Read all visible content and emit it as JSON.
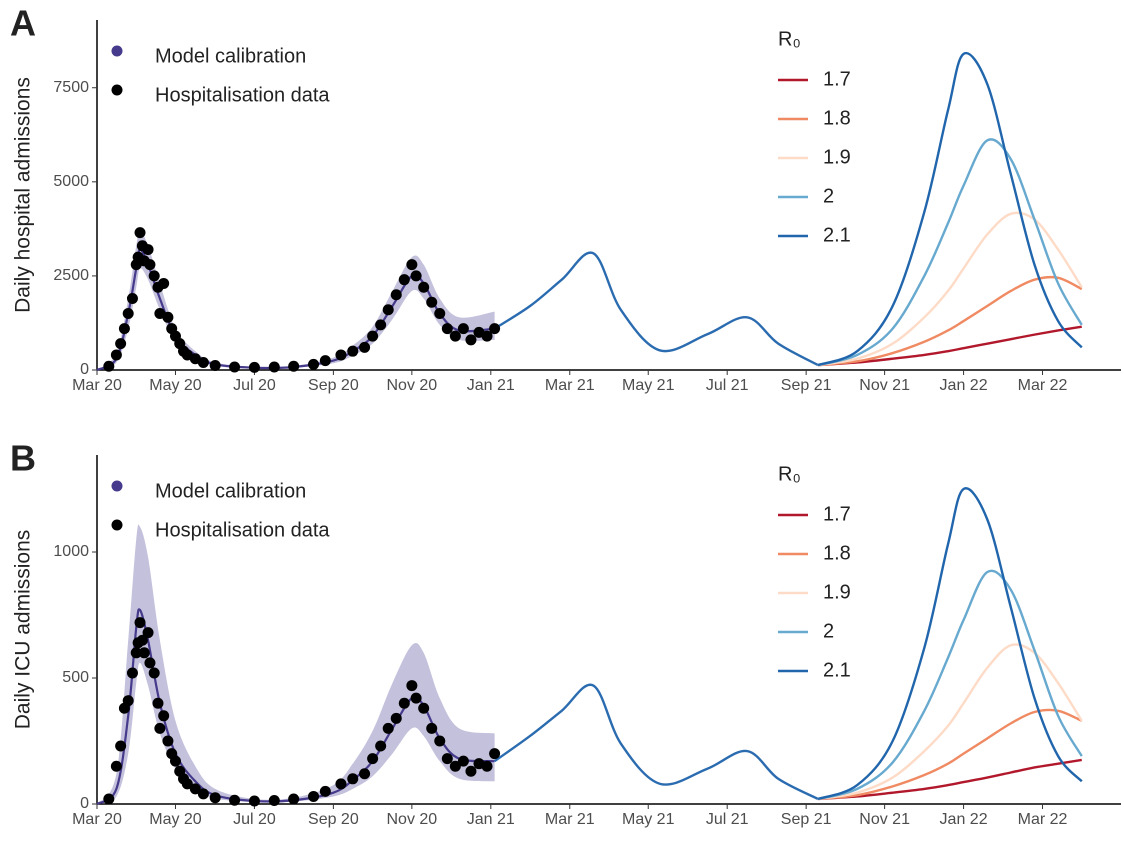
{
  "chart_data": [
    {
      "type": "line",
      "panel_label": "A",
      "ylabel": "Daily hospital admissions",
      "xlim": [
        2020.167,
        2022.333
      ],
      "ylim": [
        0,
        9300
      ],
      "yticks": [
        0,
        2500,
        5000,
        7500
      ],
      "xticks": [
        {
          "value": 2020.167,
          "label": "Mar 20"
        },
        {
          "value": 2020.333,
          "label": "May 20"
        },
        {
          "value": 2020.5,
          "label": "Jul 20"
        },
        {
          "value": 2020.667,
          "label": "Sep 20"
        },
        {
          "value": 2020.833,
          "label": "Nov 20"
        },
        {
          "value": 2021.0,
          "label": "Jan 21"
        },
        {
          "value": 2021.167,
          "label": "Mar 21"
        },
        {
          "value": 2021.333,
          "label": "May 21"
        },
        {
          "value": 2021.5,
          "label": "Jul 21"
        },
        {
          "value": 2021.667,
          "label": "Sep 21"
        },
        {
          "value": 2021.833,
          "label": "Nov 21"
        },
        {
          "value": 2022.0,
          "label": "Jan 22"
        },
        {
          "value": 2022.167,
          "label": "Mar 22"
        }
      ],
      "legend_title": "R₀",
      "series": [
        {
          "name": "Model calibration",
          "type": "ribbon",
          "color": "#453a8b",
          "band_color": "#b9b6d6",
          "x": [
            2020.167,
            2020.208,
            2020.233,
            2020.25,
            2020.258,
            2020.275,
            2020.3,
            2020.333,
            2020.375,
            2020.417,
            2020.5,
            2020.583,
            2020.667,
            2020.708,
            2020.75,
            2020.792,
            2020.833,
            2020.858,
            2020.892,
            2020.933,
            2021.008
          ],
          "values": [
            0,
            300,
            1500,
            2700,
            3200,
            2800,
            1900,
            900,
            400,
            150,
            60,
            80,
            250,
            500,
            900,
            1700,
            2500,
            2300,
            1500,
            1050,
            1100
          ],
          "lower": [
            0,
            200,
            1100,
            2200,
            2700,
            2400,
            1600,
            750,
            320,
            110,
            40,
            60,
            180,
            380,
            700,
            1350,
            2100,
            1900,
            1200,
            800,
            800
          ],
          "upper": [
            0,
            450,
            1900,
            3300,
            3700,
            3300,
            2300,
            1100,
            500,
            200,
            90,
            110,
            330,
            650,
            1150,
            2100,
            3000,
            2800,
            1900,
            1400,
            1550
          ]
        },
        {
          "name": "Hospitalisation data",
          "type": "scatter",
          "color": "#000000",
          "x": [
            2020.192,
            2020.208,
            2020.217,
            2020.225,
            2020.233,
            2020.242,
            2020.25,
            2020.254,
            2020.258,
            2020.263,
            2020.267,
            2020.275,
            2020.279,
            2020.288,
            2020.296,
            2020.3,
            2020.308,
            2020.317,
            2020.325,
            2020.333,
            2020.342,
            2020.35,
            2020.358,
            2020.375,
            2020.392,
            2020.417,
            2020.458,
            2020.5,
            2020.542,
            2020.583,
            2020.625,
            2020.65,
            2020.683,
            2020.708,
            2020.733,
            2020.75,
            2020.767,
            2020.783,
            2020.8,
            2020.817,
            2020.833,
            2020.842,
            2020.858,
            2020.875,
            2020.892,
            2020.908,
            2020.925,
            2020.942,
            2020.958,
            2020.975,
            2020.992,
            2021.008
          ],
          "values": [
            100,
            400,
            700,
            1100,
            1500,
            1900,
            2800,
            3000,
            3650,
            3300,
            2900,
            3200,
            2800,
            2500,
            2200,
            1500,
            2300,
            1400,
            1100,
            900,
            700,
            500,
            400,
            300,
            200,
            120,
            80,
            70,
            80,
            100,
            150,
            250,
            400,
            500,
            600,
            900,
            1200,
            1600,
            2000,
            2400,
            2800,
            2500,
            2200,
            1800,
            1500,
            1100,
            900,
            1100,
            800,
            1000,
            900,
            1100
          ]
        },
        {
          "type": "line",
          "color": "#2b6cb0",
          "x": [
            2021.008,
            2021.083,
            2021.15,
            2021.217,
            2021.275,
            2021.358,
            2021.458,
            2021.542,
            2021.608,
            2021.692
          ],
          "values": [
            1100,
            1700,
            2400,
            3100,
            1600,
            520,
            950,
            1400,
            700,
            130
          ]
        },
        {
          "name": "1.7",
          "type": "line",
          "color": "#b2182b",
          "x": [
            2021.692,
            2021.775,
            2021.85,
            2021.917,
            2021.967,
            2022.0,
            2022.05,
            2022.1,
            2022.15,
            2022.2,
            2022.25
          ],
          "values": [
            130,
            200,
            300,
            400,
            500,
            580,
            700,
            820,
            940,
            1050,
            1150
          ]
        },
        {
          "name": "1.8",
          "type": "line",
          "color": "#ef8a62",
          "x": [
            2021.692,
            2021.775,
            2021.85,
            2021.917,
            2021.967,
            2022.0,
            2022.05,
            2022.1,
            2022.15,
            2022.2,
            2022.25
          ],
          "values": [
            130,
            230,
            450,
            750,
            1050,
            1300,
            1700,
            2100,
            2400,
            2450,
            2150
          ]
        },
        {
          "name": "1.9",
          "type": "line",
          "color": "#fddbc7",
          "x": [
            2021.692,
            2021.775,
            2021.85,
            2021.917,
            2021.967,
            2022.0,
            2022.05,
            2022.1,
            2022.15,
            2022.2,
            2022.25
          ],
          "values": [
            130,
            300,
            700,
            1400,
            2100,
            2700,
            3600,
            4150,
            4000,
            3200,
            2200
          ]
        },
        {
          "name": "2",
          "type": "line",
          "color": "#67a9cf",
          "x": [
            2021.692,
            2021.775,
            2021.85,
            2021.917,
            2021.967,
            2022.0,
            2022.05,
            2022.1,
            2022.15,
            2022.2,
            2022.25
          ],
          "values": [
            130,
            400,
            1100,
            2500,
            3900,
            4900,
            6100,
            5600,
            4000,
            2300,
            1200
          ]
        },
        {
          "name": "2.1",
          "type": "line",
          "color": "#2166ac",
          "x": [
            2021.692,
            2021.775,
            2021.85,
            2021.917,
            2021.967,
            2022.0,
            2022.05,
            2022.1,
            2022.15,
            2022.2,
            2022.25
          ],
          "values": [
            130,
            500,
            1700,
            4200,
            6900,
            8400,
            7600,
            5200,
            2800,
            1300,
            600
          ]
        }
      ]
    },
    {
      "type": "line",
      "panel_label": "B",
      "ylabel": "Daily ICU admissions",
      "xlim": [
        2020.167,
        2022.333
      ],
      "ylim": [
        0,
        1385
      ],
      "yticks": [
        0,
        500,
        1000
      ],
      "xticks": [
        {
          "value": 2020.167,
          "label": "Mar 20"
        },
        {
          "value": 2020.333,
          "label": "May 20"
        },
        {
          "value": 2020.5,
          "label": "Jul 20"
        },
        {
          "value": 2020.667,
          "label": "Sep 20"
        },
        {
          "value": 2020.833,
          "label": "Nov 20"
        },
        {
          "value": 2021.0,
          "label": "Jan 21"
        },
        {
          "value": 2021.167,
          "label": "Mar 21"
        },
        {
          "value": 2021.333,
          "label": "May 21"
        },
        {
          "value": 2021.5,
          "label": "Jul 21"
        },
        {
          "value": 2021.667,
          "label": "Sep 21"
        },
        {
          "value": 2021.833,
          "label": "Nov 21"
        },
        {
          "value": 2022.0,
          "label": "Jan 22"
        },
        {
          "value": 2022.167,
          "label": "Mar 22"
        }
      ],
      "legend_title": "R₀",
      "series": [
        {
          "name": "Model calibration",
          "type": "ribbon",
          "color": "#453a8b",
          "band_color": "#b9b6d6",
          "x": [
            2020.167,
            2020.208,
            2020.233,
            2020.25,
            2020.258,
            2020.275,
            2020.3,
            2020.333,
            2020.375,
            2020.417,
            2020.5,
            2020.583,
            2020.667,
            2020.708,
            2020.75,
            2020.792,
            2020.833,
            2020.858,
            2020.892,
            2020.933,
            2021.008
          ],
          "values": [
            0,
            60,
            350,
            700,
            770,
            650,
            400,
            200,
            90,
            35,
            12,
            15,
            45,
            95,
            170,
            300,
            420,
            390,
            260,
            180,
            170
          ],
          "lower": [
            0,
            30,
            200,
            480,
            560,
            470,
            280,
            140,
            60,
            22,
            8,
            10,
            30,
            60,
            110,
            200,
            300,
            270,
            170,
            100,
            90
          ],
          "upper": [
            0,
            120,
            650,
            1050,
            1100,
            980,
            650,
            330,
            150,
            60,
            20,
            25,
            75,
            160,
            290,
            480,
            630,
            600,
            420,
            300,
            280
          ]
        },
        {
          "name": "Hospitalisation data",
          "type": "scatter",
          "color": "#000000",
          "x": [
            2020.192,
            2020.208,
            2020.217,
            2020.225,
            2020.233,
            2020.242,
            2020.25,
            2020.254,
            2020.258,
            2020.263,
            2020.267,
            2020.275,
            2020.279,
            2020.288,
            2020.296,
            2020.3,
            2020.308,
            2020.317,
            2020.325,
            2020.333,
            2020.342,
            2020.35,
            2020.358,
            2020.375,
            2020.392,
            2020.417,
            2020.458,
            2020.5,
            2020.542,
            2020.583,
            2020.625,
            2020.65,
            2020.683,
            2020.708,
            2020.733,
            2020.75,
            2020.767,
            2020.783,
            2020.8,
            2020.817,
            2020.833,
            2020.842,
            2020.858,
            2020.875,
            2020.892,
            2020.908,
            2020.925,
            2020.942,
            2020.958,
            2020.975,
            2020.992,
            2021.008
          ],
          "values": [
            20,
            150,
            230,
            380,
            410,
            520,
            600,
            640,
            720,
            650,
            600,
            680,
            560,
            520,
            400,
            300,
            350,
            250,
            200,
            170,
            130,
            100,
            80,
            60,
            40,
            25,
            15,
            12,
            14,
            20,
            30,
            50,
            80,
            100,
            120,
            180,
            230,
            300,
            340,
            400,
            470,
            420,
            380,
            300,
            250,
            180,
            150,
            170,
            130,
            160,
            150,
            200
          ]
        },
        {
          "type": "line",
          "color": "#2b6cb0",
          "x": [
            2021.008,
            2021.083,
            2021.15,
            2021.217,
            2021.275,
            2021.358,
            2021.458,
            2021.542,
            2021.608,
            2021.692
          ],
          "values": [
            170,
            270,
            370,
            470,
            240,
            80,
            140,
            210,
            100,
            20
          ]
        },
        {
          "name": "1.7",
          "type": "line",
          "color": "#b2182b",
          "x": [
            2021.692,
            2021.775,
            2021.85,
            2021.917,
            2021.967,
            2022.0,
            2022.05,
            2022.1,
            2022.15,
            2022.2,
            2022.25
          ],
          "values": [
            20,
            30,
            45,
            60,
            75,
            87,
            105,
            125,
            145,
            160,
            175
          ]
        },
        {
          "name": "1.8",
          "type": "line",
          "color": "#ef8a62",
          "x": [
            2021.692,
            2021.775,
            2021.85,
            2021.917,
            2021.967,
            2022.0,
            2022.05,
            2022.1,
            2022.15,
            2022.2,
            2022.25
          ],
          "values": [
            20,
            35,
            70,
            115,
            160,
            200,
            260,
            320,
            365,
            370,
            330
          ]
        },
        {
          "name": "1.9",
          "type": "line",
          "color": "#fddbc7",
          "x": [
            2021.692,
            2021.775,
            2021.85,
            2021.917,
            2021.967,
            2022.0,
            2022.05,
            2022.1,
            2022.15,
            2022.2,
            2022.25
          ],
          "values": [
            20,
            45,
            105,
            210,
            310,
            400,
            540,
            630,
            600,
            480,
            330
          ]
        },
        {
          "name": "2",
          "type": "line",
          "color": "#67a9cf",
          "x": [
            2021.692,
            2021.775,
            2021.85,
            2021.917,
            2021.967,
            2022.0,
            2022.05,
            2022.1,
            2022.15,
            2022.2,
            2022.25
          ],
          "values": [
            20,
            60,
            165,
            370,
            580,
            730,
            920,
            850,
            610,
            350,
            190
          ]
        },
        {
          "name": "2.1",
          "type": "line",
          "color": "#2166ac",
          "x": [
            2021.692,
            2021.775,
            2021.85,
            2021.917,
            2021.967,
            2022.0,
            2022.05,
            2022.1,
            2022.15,
            2022.2,
            2022.25
          ],
          "values": [
            20,
            75,
            250,
            620,
            1030,
            1250,
            1130,
            780,
            420,
            190,
            90
          ]
        }
      ]
    }
  ]
}
